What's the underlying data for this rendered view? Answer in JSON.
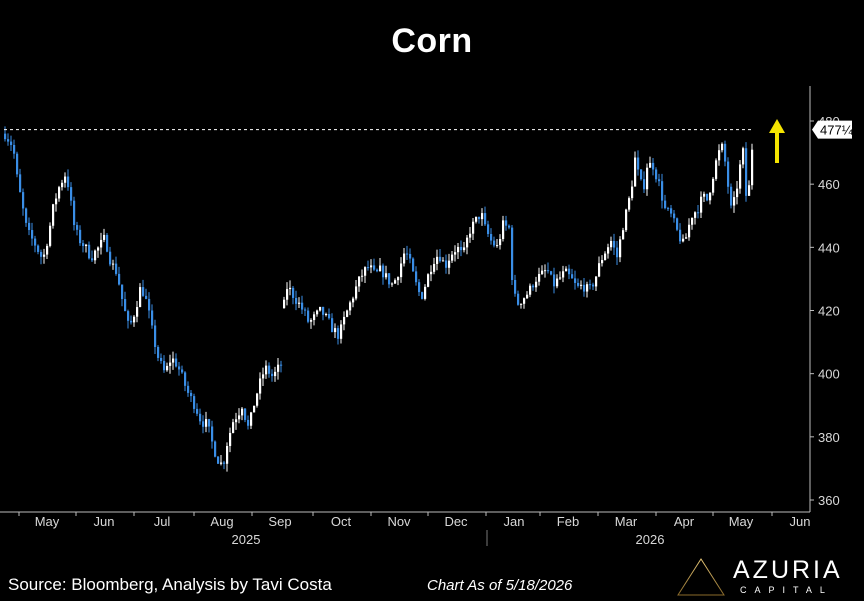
{
  "chart_data": {
    "type": "candlestick",
    "title": "Corn",
    "y_ticks": [
      360,
      380,
      400,
      420,
      440,
      460,
      480
    ],
    "ylim": [
      356,
      486
    ],
    "x_months": [
      "May",
      "Jun",
      "Jul",
      "Aug",
      "Sep",
      "Oct",
      "Nov",
      "Dec",
      "Jan",
      "Feb",
      "Mar",
      "Apr",
      "May",
      "Jun"
    ],
    "x_years": [
      "2025",
      "2026"
    ],
    "last_price_label": "477¼",
    "last_price": 477.25,
    "reference_line_level": 477.25,
    "reference_line_style": "dashed",
    "annotation_arrow": "up",
    "annotation_arrow_color": "#f5e400",
    "up_color": "#ffffff",
    "down_color": "#3a8ee6",
    "grid": false,
    "price_path": [
      [
        0,
        476
      ],
      [
        8,
        472
      ],
      [
        12,
        462
      ],
      [
        16,
        455
      ],
      [
        22,
        445
      ],
      [
        30,
        441
      ],
      [
        38,
        436
      ],
      [
        44,
        445
      ],
      [
        49,
        454
      ],
      [
        55,
        460
      ],
      [
        60,
        463
      ],
      [
        64,
        459
      ],
      [
        68,
        448
      ],
      [
        73,
        443
      ],
      [
        78,
        441
      ],
      [
        86,
        437
      ],
      [
        94,
        440
      ],
      [
        100,
        443
      ],
      [
        106,
        435
      ],
      [
        112,
        432
      ],
      [
        118,
        422
      ],
      [
        124,
        414
      ],
      [
        130,
        420
      ],
      [
        136,
        428
      ],
      [
        142,
        422
      ],
      [
        148,
        412
      ],
      [
        154,
        404
      ],
      [
        160,
        400
      ],
      [
        166,
        405
      ],
      [
        172,
        403
      ],
      [
        178,
        398
      ],
      [
        184,
        393
      ],
      [
        190,
        390
      ],
      [
        196,
        385
      ],
      [
        202,
        384
      ],
      [
        208,
        377
      ],
      [
        214,
        372
      ],
      [
        218,
        371
      ],
      [
        222,
        378
      ],
      [
        228,
        385
      ],
      [
        234,
        388
      ],
      [
        238,
        391
      ],
      [
        242,
        382
      ],
      [
        246,
        386
      ],
      [
        250,
        392
      ],
      [
        254,
        396
      ],
      [
        258,
        400
      ],
      [
        262,
        402
      ],
      [
        266,
        399
      ],
      [
        270,
        400
      ],
      [
        276,
        403
      ],
      [
        280,
        428
      ],
      [
        286,
        426
      ],
      [
        292,
        423
      ],
      [
        298,
        420
      ],
      [
        304,
        416
      ],
      [
        310,
        418
      ],
      [
        316,
        420
      ],
      [
        322,
        417
      ],
      [
        328,
        414
      ],
      [
        334,
        412
      ],
      [
        340,
        418
      ],
      [
        346,
        423
      ],
      [
        352,
        428
      ],
      [
        358,
        432
      ],
      [
        364,
        434
      ],
      [
        370,
        431
      ],
      [
        376,
        433
      ],
      [
        382,
        430
      ],
      [
        388,
        428
      ],
      [
        394,
        433
      ],
      [
        400,
        439
      ],
      [
        404,
        436
      ],
      [
        410,
        429
      ],
      [
        416,
        424
      ],
      [
        422,
        430
      ],
      [
        428,
        436
      ],
      [
        434,
        438
      ],
      [
        440,
        434
      ],
      [
        446,
        438
      ],
      [
        452,
        440
      ],
      [
        458,
        437
      ],
      [
        464,
        445
      ],
      [
        470,
        448
      ],
      [
        476,
        451
      ],
      [
        480,
        446
      ],
      [
        486,
        442
      ],
      [
        492,
        440
      ],
      [
        498,
        447
      ],
      [
        504,
        446
      ],
      [
        508,
        426
      ],
      [
        512,
        422
      ],
      [
        518,
        424
      ],
      [
        524,
        426
      ],
      [
        530,
        430
      ],
      [
        536,
        431
      ],
      [
        542,
        433
      ],
      [
        548,
        428
      ],
      [
        554,
        430
      ],
      [
        560,
        432
      ],
      [
        566,
        430
      ],
      [
        572,
        427
      ],
      [
        578,
        428
      ],
      [
        584,
        426
      ],
      [
        590,
        430
      ],
      [
        596,
        436
      ],
      [
        602,
        440
      ],
      [
        606,
        442
      ],
      [
        612,
        437
      ],
      [
        618,
        447
      ],
      [
        622,
        452
      ],
      [
        626,
        458
      ],
      [
        630,
        468
      ],
      [
        634,
        462
      ],
      [
        638,
        458
      ],
      [
        642,
        466
      ],
      [
        648,
        466
      ],
      [
        654,
        460
      ],
      [
        660,
        452
      ],
      [
        666,
        450
      ],
      [
        672,
        445
      ],
      [
        678,
        441
      ],
      [
        682,
        444
      ],
      [
        686,
        450
      ],
      [
        692,
        452
      ],
      [
        698,
        456
      ],
      [
        702,
        455
      ],
      [
        706,
        460
      ],
      [
        710,
        466
      ],
      [
        714,
        470
      ],
      [
        718,
        472
      ],
      [
        722,
        462
      ],
      [
        726,
        452
      ],
      [
        730,
        455
      ],
      [
        734,
        464
      ],
      [
        738,
        470
      ],
      [
        742,
        452
      ],
      [
        746,
        466
      ],
      [
        748,
        477.25
      ]
    ]
  },
  "footer": {
    "source": "Source: Bloomberg, Analysis by Tavi Costa",
    "as_of": "Chart As of 5/18/2026"
  },
  "brand": {
    "name": "AZURIA",
    "sub": "CAPITAL"
  }
}
